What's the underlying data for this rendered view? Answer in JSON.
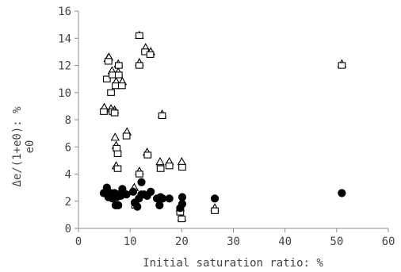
{
  "chart_data": {
    "type": "scatter",
    "title": "",
    "xlabel": "Initial saturation ratio: %",
    "ylabel_line1": "Δe/(1+e0): %",
    "ylabel_line2": "e0",
    "xlim": [
      0,
      60
    ],
    "ylim": [
      0,
      16
    ],
    "x_ticks": [
      0,
      10,
      20,
      30,
      40,
      50,
      60
    ],
    "y_ticks": [
      0,
      2,
      4,
      6,
      8,
      10,
      12,
      14,
      16
    ],
    "x_tick_labels": [
      "0",
      "10",
      "20",
      "30",
      "40",
      "50",
      "60"
    ],
    "y_tick_labels": [
      "0",
      "2",
      "4",
      "6",
      "8",
      "10",
      "12",
      "14",
      "16"
    ],
    "grid": false,
    "legend": "none",
    "series": [
      {
        "marker": "triangle",
        "color": "#000000",
        "fill": "#ffffff",
        "points": [
          [
            5.0,
            8.9
          ],
          [
            5.7,
            12.5
          ],
          [
            5.9,
            12.6
          ],
          [
            6.3,
            8.8
          ],
          [
            6.5,
            11.6
          ],
          [
            7.0,
            8.7
          ],
          [
            7.3,
            10.8
          ],
          [
            7.1,
            6.7
          ],
          [
            7.3,
            6.1
          ],
          [
            7.3,
            4.6
          ],
          [
            7.7,
            11.5
          ],
          [
            7.7,
            12.1
          ],
          [
            8.5,
            10.8
          ],
          [
            9.4,
            7.1
          ],
          [
            10.8,
            3.0
          ],
          [
            11.8,
            14.2
          ],
          [
            11.8,
            12.2
          ],
          [
            11.8,
            4.2
          ],
          [
            13.0,
            13.3
          ],
          [
            13.3,
            5.6
          ],
          [
            14.0,
            13.0
          ],
          [
            15.8,
            4.9
          ],
          [
            16.2,
            8.4
          ],
          [
            17.6,
            4.9
          ],
          [
            20.0,
            4.9
          ],
          [
            19.7,
            1.5
          ],
          [
            20.0,
            0.8
          ],
          [
            26.4,
            1.5
          ],
          [
            51.0,
            12.1
          ]
        ]
      },
      {
        "marker": "square",
        "color": "#000000",
        "fill": "#ffffff",
        "points": [
          [
            4.9,
            8.6
          ],
          [
            5.5,
            11.0
          ],
          [
            5.8,
            12.3
          ],
          [
            6.3,
            10.0
          ],
          [
            6.6,
            11.3
          ],
          [
            6.6,
            8.6
          ],
          [
            7.0,
            8.5
          ],
          [
            7.2,
            10.5
          ],
          [
            7.4,
            5.9
          ],
          [
            7.6,
            5.5
          ],
          [
            7.6,
            4.4
          ],
          [
            7.8,
            11.3
          ],
          [
            7.8,
            12.0
          ],
          [
            8.4,
            10.5
          ],
          [
            9.3,
            6.8
          ],
          [
            11.0,
            1.7
          ],
          [
            11.8,
            14.2
          ],
          [
            11.8,
            12.0
          ],
          [
            11.8,
            4.0
          ],
          [
            12.9,
            13.0
          ],
          [
            13.4,
            5.4
          ],
          [
            13.9,
            12.8
          ],
          [
            15.9,
            4.4
          ],
          [
            16.2,
            8.3
          ],
          [
            17.6,
            4.6
          ],
          [
            19.7,
            1.2
          ],
          [
            20.1,
            4.5
          ],
          [
            20.0,
            0.7
          ],
          [
            26.4,
            1.3
          ],
          [
            51.0,
            12.0
          ]
        ]
      },
      {
        "marker": "circle",
        "color": "#000000",
        "fill": "#000000",
        "points": [
          [
            4.9,
            2.6
          ],
          [
            5.5,
            3.0
          ],
          [
            5.8,
            2.3
          ],
          [
            6.3,
            2.6
          ],
          [
            6.6,
            2.2
          ],
          [
            7.0,
            2.6
          ],
          [
            7.2,
            1.7
          ],
          [
            7.4,
            2.3
          ],
          [
            7.6,
            2.5
          ],
          [
            7.7,
            1.7
          ],
          [
            8.2,
            2.4
          ],
          [
            8.5,
            2.9
          ],
          [
            9.3,
            2.5
          ],
          [
            10.6,
            2.7
          ],
          [
            10.9,
            1.9
          ],
          [
            11.4,
            1.6
          ],
          [
            11.7,
            2.2
          ],
          [
            12.2,
            3.4
          ],
          [
            12.2,
            2.5
          ],
          [
            12.7,
            2.5
          ],
          [
            13.3,
            2.4
          ],
          [
            14.0,
            2.7
          ],
          [
            15.2,
            2.2
          ],
          [
            15.7,
            1.7
          ],
          [
            15.9,
            2.3
          ],
          [
            16.3,
            2.2
          ],
          [
            17.6,
            2.2
          ],
          [
            19.7,
            1.5
          ],
          [
            20.1,
            1.8
          ],
          [
            20.1,
            2.3
          ],
          [
            26.4,
            2.2
          ],
          [
            51.0,
            2.6
          ]
        ]
      }
    ]
  }
}
